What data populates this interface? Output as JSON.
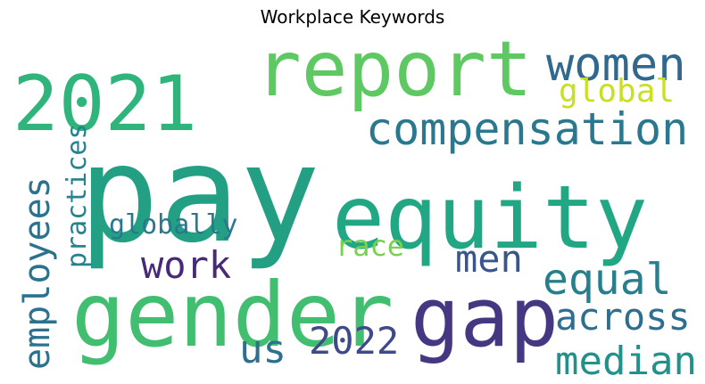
{
  "chart_data": {
    "type": "wordcloud",
    "title": "Workplace Keywords",
    "words": [
      {
        "text": "pay",
        "weight": 1.0,
        "color": "#23a083"
      },
      {
        "text": "gender",
        "weight": 0.82,
        "color": "#42be71"
      },
      {
        "text": "equity",
        "weight": 0.78,
        "color": "#22a785"
      },
      {
        "text": "report",
        "weight": 0.7,
        "color": "#5ec962"
      },
      {
        "text": "2021",
        "weight": 0.66,
        "color": "#2fb47c"
      },
      {
        "text": "gap",
        "weight": 0.68,
        "color": "#453781"
      },
      {
        "text": "compensation",
        "weight": 0.48,
        "color": "#2a788e"
      },
      {
        "text": "women",
        "weight": 0.44,
        "color": "#31688e"
      },
      {
        "text": "employees",
        "weight": 0.42,
        "color": "#2c728e"
      },
      {
        "text": "equal",
        "weight": 0.38,
        "color": "#277f8e"
      },
      {
        "text": "across",
        "weight": 0.36,
        "color": "#2e6e8e"
      },
      {
        "text": "median",
        "weight": 0.36,
        "color": "#21918c"
      },
      {
        "text": "men",
        "weight": 0.34,
        "color": "#39568c"
      },
      {
        "text": "us",
        "weight": 0.34,
        "color": "#2d708e"
      },
      {
        "text": "2022",
        "weight": 0.34,
        "color": "#3e4a89"
      },
      {
        "text": "work",
        "weight": 0.34,
        "color": "#482878"
      },
      {
        "text": "global",
        "weight": 0.3,
        "color": "#c8e020"
      },
      {
        "text": "globally",
        "weight": 0.26,
        "color": "#2a788e"
      },
      {
        "text": "race",
        "weight": 0.26,
        "color": "#7ad151"
      },
      {
        "text": "practices",
        "weight": 0.24,
        "color": "#26828e"
      }
    ]
  }
}
